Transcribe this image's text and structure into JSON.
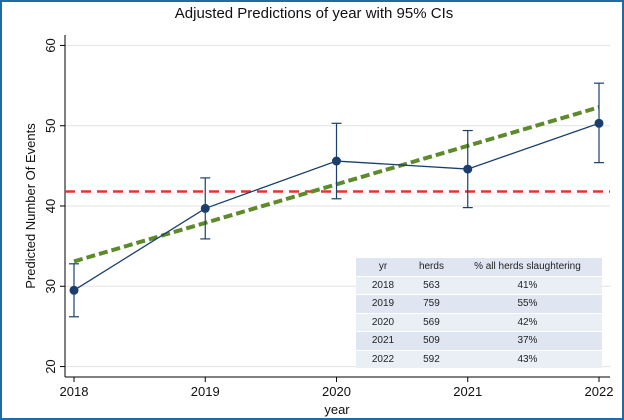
{
  "chart_data": {
    "type": "line",
    "title": "Adjusted Predictions of year with 95% CIs",
    "xlabel": "year",
    "ylabel": "Predicted Number Of Events",
    "x": [
      2018,
      2019,
      2020,
      2021,
      2022
    ],
    "x_tick_labels": [
      "2018",
      "2019",
      "2020",
      "2021",
      "2022"
    ],
    "y_ticks": [
      20,
      30,
      40,
      50,
      60
    ],
    "y_tick_labels": [
      "20",
      "30",
      "40",
      "50",
      "60"
    ],
    "ylim": [
      18.7,
      61.3
    ],
    "grid": true,
    "series": [
      {
        "name": "prediction",
        "values": [
          29.5,
          39.7,
          45.6,
          44.6,
          50.3
        ],
        "ci_lower": [
          26.2,
          35.9,
          40.9,
          39.8,
          45.4
        ],
        "ci_upper": [
          32.8,
          43.5,
          50.3,
          49.4,
          55.3
        ],
        "color": "#1a3f6f"
      },
      {
        "name": "linear trend",
        "x": [
          2018,
          2022
        ],
        "values": [
          33.1,
          52.3
        ],
        "style": "dashed",
        "color": "#5e8a2c"
      },
      {
        "name": "mean reference",
        "x": [
          2018,
          2022
        ],
        "values": [
          41.8,
          41.8
        ],
        "style": "dashed",
        "color": "#e8342a"
      }
    ],
    "table": {
      "headers": [
        "yr",
        "herds",
        "% all herds slaughtering"
      ],
      "rows": [
        [
          "2018",
          "563",
          "41%"
        ],
        [
          "2019",
          "759",
          "55%"
        ],
        [
          "2020",
          "569",
          "42%"
        ],
        [
          "2021",
          "509",
          "37%"
        ],
        [
          "2022",
          "592",
          "43%"
        ]
      ]
    }
  }
}
